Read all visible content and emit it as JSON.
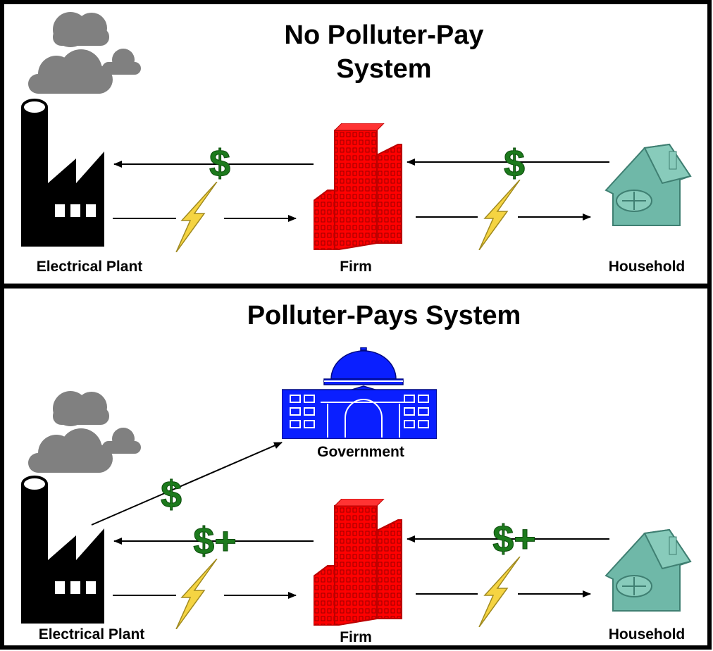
{
  "panels": [
    {
      "title_lines": [
        "No Polluter-Pay",
        "System"
      ],
      "nodes": [
        "Electrical Plant",
        "Firm",
        "Household"
      ],
      "payments": [
        "$",
        "$"
      ]
    },
    {
      "title_lines": [
        "Polluter-Pays System"
      ],
      "government": "Government",
      "nodes": [
        "Electrical Plant",
        "Firm",
        "Household"
      ],
      "payments": [
        "$",
        "$+",
        "$+"
      ]
    }
  ]
}
